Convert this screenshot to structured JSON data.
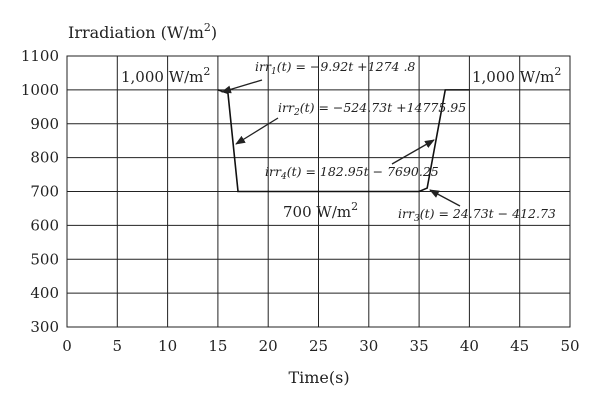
{
  "chart_data": {
    "type": "line",
    "ylabel_main": "Irradiation (W/m",
    "ylabel_sup": "2",
    "ylabel_end": ")",
    "xlabel": "Time(s)",
    "xlim": [
      0,
      50
    ],
    "ylim": [
      300,
      1100
    ],
    "xticks": [
      0,
      5,
      10,
      15,
      20,
      25,
      30,
      35,
      40,
      45,
      50
    ],
    "yticks": [
      300,
      400,
      500,
      600,
      700,
      800,
      900,
      1000,
      1100
    ],
    "grid": true,
    "series": [
      {
        "points": [
          [
            15,
            1000
          ],
          [
            16.0,
            990
          ],
          [
            17.0,
            700
          ],
          [
            35.0,
            700
          ],
          [
            35.8,
            710
          ],
          [
            37.6,
            1000
          ],
          [
            40,
            1000
          ]
        ]
      }
    ],
    "annotations": {
      "level_left": {
        "main": "1,000 W/m",
        "sup": "2"
      },
      "level_right": {
        "main": "1,000 W/m",
        "sup": "2"
      },
      "level_bottom": {
        "main": "700 W/m",
        "sup": "2"
      },
      "irr1": {
        "name": "irr",
        "sub": "1",
        "rest": "(t) = −9.92t +1274 .8"
      },
      "irr2": {
        "name": "irr",
        "sub": "2",
        "rest": "(t) = −524.73t +14775.95"
      },
      "irr4": {
        "name": "irr",
        "sub": "4",
        "rest": "(t) = 182.95t − 7690.25"
      },
      "irr3": {
        "name": "irr",
        "sub": "3",
        "rest": "(t) = 24.73t − 412.73"
      }
    }
  }
}
